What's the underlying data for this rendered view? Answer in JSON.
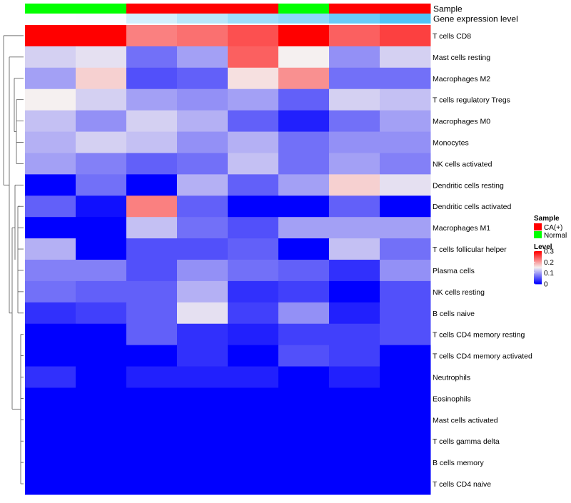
{
  "chart_data": {
    "type": "heatmap",
    "title": "",
    "annotation_tracks": [
      "Sample",
      "Gene expression level"
    ],
    "sample_groups": [
      "Normal",
      "Normal",
      "CA(+)",
      "CA(+)",
      "CA(+)",
      "Normal",
      "CA(+)",
      "CA(+)"
    ],
    "gene_expression_level": [
      0.02,
      0.03,
      0.25,
      0.4,
      0.55,
      0.65,
      0.85,
      1.0
    ],
    "rows": [
      "T cells CD8",
      "Mast cells resting",
      "Macrophages M2",
      "T cells regulatory  Tregs",
      "Macrophages M0",
      "Monocytes",
      "NK cells activated",
      "Dendritic cells resting",
      "Dendritic cells activated",
      "Macrophages M1",
      "T cells follicular helper",
      "Plasma cells",
      "NK cells resting",
      "B cells naive",
      "T cells CD4 memory resting",
      "T cells CD4 memory activated",
      "Neutrophils",
      "Eosinophils",
      "Mast cells activated",
      "T cells gamma delta",
      "B cells memory",
      "T cells CD4 naive"
    ],
    "values": [
      [
        0.3,
        0.3,
        0.22,
        0.23,
        0.25,
        0.3,
        0.24,
        0.26
      ],
      [
        0.13,
        0.14,
        0.07,
        0.1,
        0.24,
        0.15,
        0.09,
        0.13
      ],
      [
        0.1,
        0.17,
        0.05,
        0.06,
        0.16,
        0.21,
        0.07,
        0.07
      ],
      [
        0.15,
        0.13,
        0.1,
        0.09,
        0.1,
        0.06,
        0.13,
        0.12
      ],
      [
        0.12,
        0.09,
        0.13,
        0.11,
        0.06,
        0.02,
        0.07,
        0.1
      ],
      [
        0.11,
        0.13,
        0.12,
        0.09,
        0.11,
        0.07,
        0.09,
        0.09
      ],
      [
        0.1,
        0.08,
        0.06,
        0.07,
        0.12,
        0.07,
        0.1,
        0.08
      ],
      [
        0.0,
        0.07,
        0.0,
        0.11,
        0.06,
        0.1,
        0.17,
        0.14
      ],
      [
        0.06,
        0.01,
        0.22,
        0.06,
        0.0,
        0.0,
        0.06,
        0.0
      ],
      [
        0.0,
        0.0,
        0.12,
        0.07,
        0.05,
        0.1,
        0.1,
        0.1
      ],
      [
        0.11,
        0.0,
        0.05,
        0.05,
        0.06,
        0.0,
        0.12,
        0.07
      ],
      [
        0.08,
        0.08,
        0.05,
        0.09,
        0.07,
        0.06,
        0.03,
        0.09
      ],
      [
        0.07,
        0.06,
        0.06,
        0.11,
        0.03,
        0.04,
        0.0,
        0.05
      ],
      [
        0.03,
        0.04,
        0.06,
        0.14,
        0.04,
        0.09,
        0.02,
        0.05
      ],
      [
        0.0,
        0.0,
        0.06,
        0.03,
        0.02,
        0.04,
        0.04,
        0.05
      ],
      [
        0.0,
        0.0,
        0.0,
        0.03,
        0.0,
        0.05,
        0.04,
        0.0
      ],
      [
        0.03,
        0.0,
        0.02,
        0.02,
        0.02,
        0.0,
        0.02,
        0.0
      ],
      [
        0.0,
        0.0,
        0.0,
        0.0,
        0.0,
        0.0,
        0.0,
        0.0
      ],
      [
        0.0,
        0.0,
        0.0,
        0.0,
        0.0,
        0.0,
        0.0,
        0.0
      ],
      [
        0.0,
        0.0,
        0.0,
        0.0,
        0.0,
        0.0,
        0.0,
        0.0
      ],
      [
        0.0,
        0.0,
        0.0,
        0.0,
        0.0,
        0.0,
        0.0,
        0.0
      ],
      [
        0.0,
        0.0,
        0.0,
        0.0,
        0.0,
        0.0,
        0.0,
        0.0
      ]
    ],
    "color_scale": {
      "min": 0,
      "mid": 0.15,
      "max": 0.3,
      "low_color": "#0000ff",
      "mid_color": "#f5f0f0",
      "high_color": "#ff0000"
    },
    "legend": {
      "sample_title": "Sample",
      "sample_entries": [
        {
          "label": "CA(+)",
          "color": "#ff0000"
        },
        {
          "label": "Normal",
          "color": "#00ff00"
        }
      ],
      "level_title": "Level",
      "level_ticks": [
        "0.3",
        "0.2",
        "0.1",
        "0"
      ],
      "level_tick_values": [
        0.3,
        0.2,
        0.1,
        0
      ]
    },
    "expression_colors": {
      "low": "#ffffff",
      "high": "#4fc3f7"
    },
    "group_colors": {
      "CA(+)": "#ff0000",
      "Normal": "#00ff00"
    },
    "dendrogram": "row clustering tree (left)"
  }
}
